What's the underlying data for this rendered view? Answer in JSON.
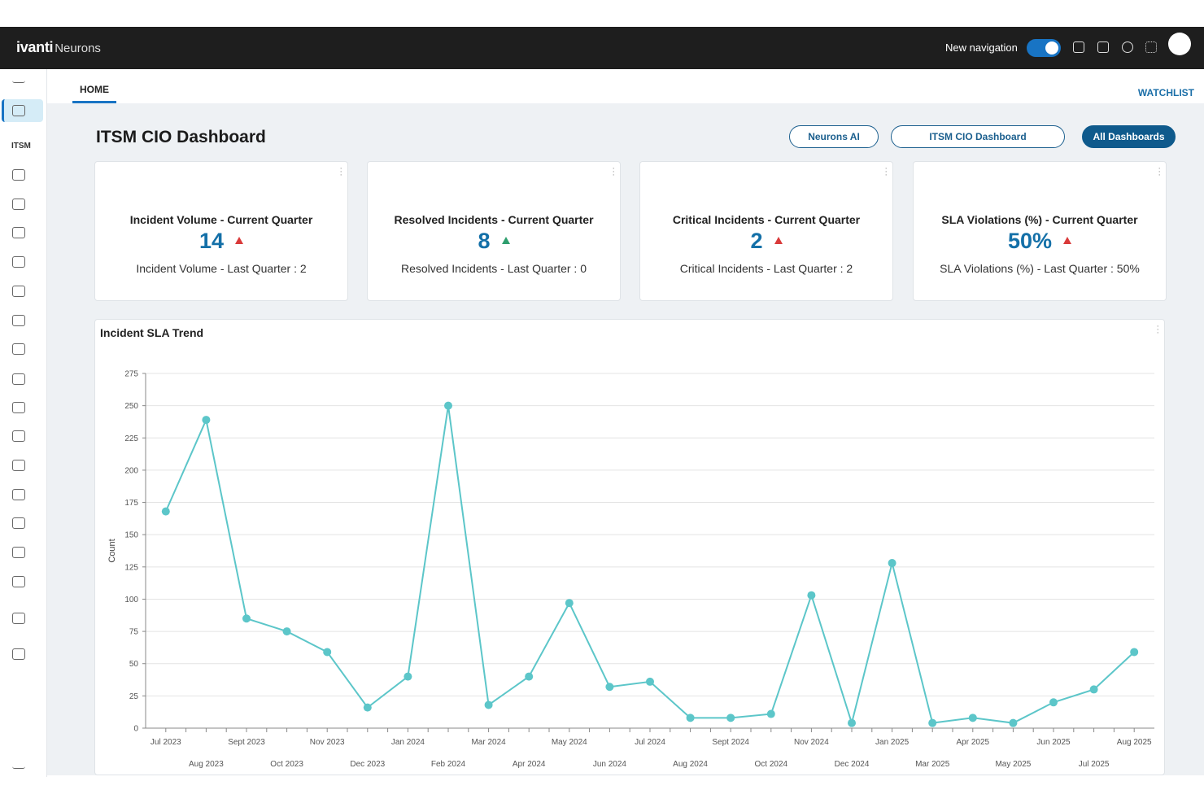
{
  "header": {
    "brand": "ivanti",
    "product": "Neurons",
    "new_navigation": "New navigation"
  },
  "sidebar": {
    "section": "ITSM"
  },
  "tabs": {
    "home": "HOME",
    "watchlist": "WATCHLIST"
  },
  "dashboard": {
    "title": "ITSM CIO Dashboard",
    "buttons": [
      "Neurons AI",
      "ITSM CIO Dashboard",
      "All Dashboards"
    ]
  },
  "cards": [
    {
      "title": "Incident Volume - Current Quarter",
      "value": "14",
      "trend_color": "#d93a3a",
      "comparison": "Incident Volume - Last Quarter : 2"
    },
    {
      "title": "Resolved Incidents - Current Quarter",
      "value": "8",
      "trend_color": "#2e9e6e",
      "comparison": "Resolved Incidents - Last Quarter : 0"
    },
    {
      "title": "Critical Incidents - Current Quarter",
      "value": "2",
      "trend_color": "#d93a3a",
      "comparison": "Critical Incidents - Last Quarter : 2"
    },
    {
      "title": "SLA Violations (%) - Current Quarter",
      "value": "50%",
      "trend_color": "#d93a3a",
      "comparison": "SLA Violations (%) - Last Quarter : 50%"
    }
  ],
  "chart_data": {
    "type": "line",
    "title": "Incident SLA Trend",
    "y_label": "Count",
    "categories": [
      "Jul 2023",
      "Aug 2023",
      "Sept 2023",
      "Oct 2023",
      "Nov 2023",
      "Dec 2023",
      "Jan 2024",
      "Feb 2024",
      "Mar 2024",
      "Apr 2024",
      "May 2024",
      "Jun 2024",
      "Jul 2024",
      "Aug 2024",
      "Sept 2024",
      "Oct 2024",
      "Nov 2024",
      "Dec 2024",
      "Jan 2025",
      "Mar 2025",
      "Apr 2025",
      "May 2025",
      "Jun 2025",
      "Jul 2025",
      "Aug 2025"
    ],
    "values": [
      168,
      239,
      85,
      75,
      59,
      16,
      40,
      250,
      18,
      40,
      97,
      32,
      36,
      8,
      8,
      11,
      103,
      4,
      128,
      4,
      8,
      4,
      20,
      30,
      59
    ],
    "color": "#5cc6c9",
    "ylim": [
      0,
      275
    ],
    "yticks": [
      0,
      25,
      50,
      75,
      100,
      125,
      150,
      175,
      200,
      225,
      250,
      275
    ],
    "grid": true
  }
}
